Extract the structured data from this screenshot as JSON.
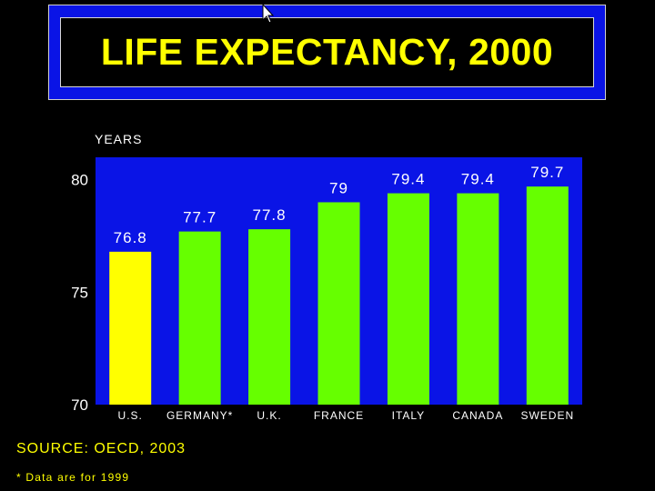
{
  "colors": {
    "background": "#000000",
    "plot_area": "#0a14e6",
    "title_text": "#ffff00",
    "highlight_bar": "#ffff00",
    "bar": "#66ff00",
    "label_text": "#ffffff"
  },
  "chart_data": {
    "type": "bar",
    "title": "LIFE EXPECTANCY, 2000",
    "ylabel": "YEARS",
    "xlabel": "",
    "categories": [
      "U.S.",
      "GERMANY*",
      "U.K.",
      "FRANCE",
      "ITALY",
      "CANADA",
      "SWEDEN"
    ],
    "values": [
      76.8,
      77.7,
      77.8,
      79,
      79.4,
      79.4,
      79.7
    ],
    "value_labels": [
      "76.8",
      "77.7",
      "77.8",
      "79",
      "79.4",
      "79.4",
      "79.7"
    ],
    "highlight_index": 0,
    "ylim": [
      70,
      81
    ],
    "yticks": [
      70,
      75,
      80
    ],
    "ytick_labels": [
      "70",
      "75",
      "80"
    ],
    "grid": false,
    "legend": "none"
  },
  "source_text": "SOURCE: OECD, 2003",
  "footnote_text": "* Data are for 1999"
}
